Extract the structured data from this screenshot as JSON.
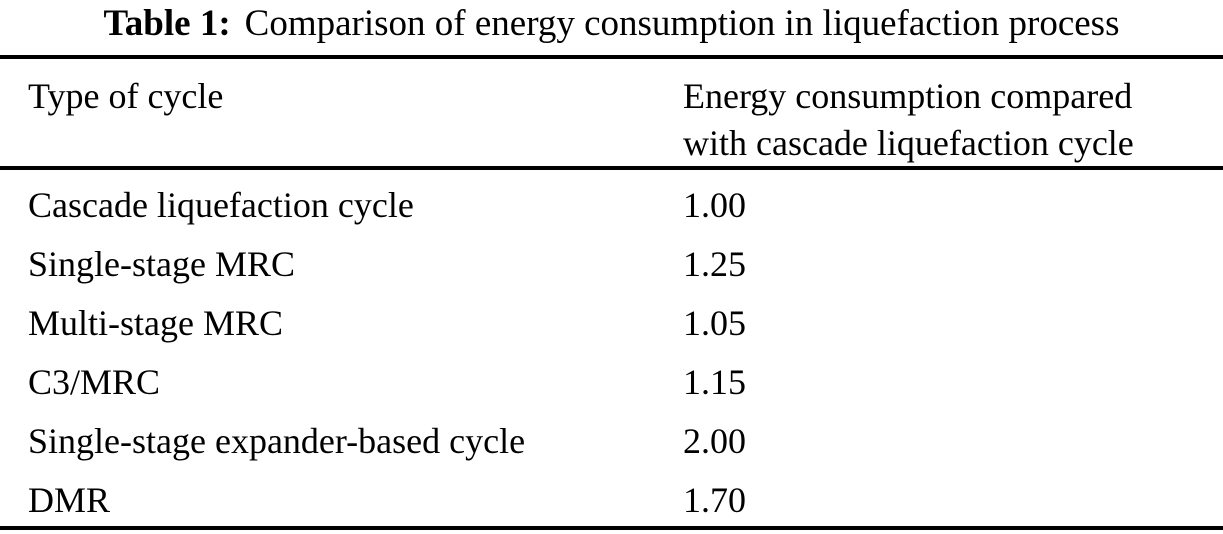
{
  "caption": {
    "label": "Table 1:",
    "text": "Comparison of energy consumption in liquefaction process"
  },
  "columns": [
    "Type of cycle",
    "Energy consumption compared with cascade liquefaction cycle"
  ],
  "header": {
    "col1": "Type of cycle",
    "col2_line1": "Energy consumption compared",
    "col2_line2": "with cascade liquefaction cycle"
  },
  "rows": [
    {
      "type": "Cascade liquefaction cycle",
      "value": "1.00"
    },
    {
      "type": "Single-stage MRC",
      "value": "1.25"
    },
    {
      "type": "Multi-stage MRC",
      "value": "1.05"
    },
    {
      "type": "C3/MRC",
      "value": "1.15"
    },
    {
      "type": "Single-stage expander-based cycle",
      "value": "2.00"
    },
    {
      "type": "DMR",
      "value": "1.70"
    }
  ],
  "colors": {
    "background": "#ffffff",
    "text": "#000000",
    "rule": "#000000"
  }
}
